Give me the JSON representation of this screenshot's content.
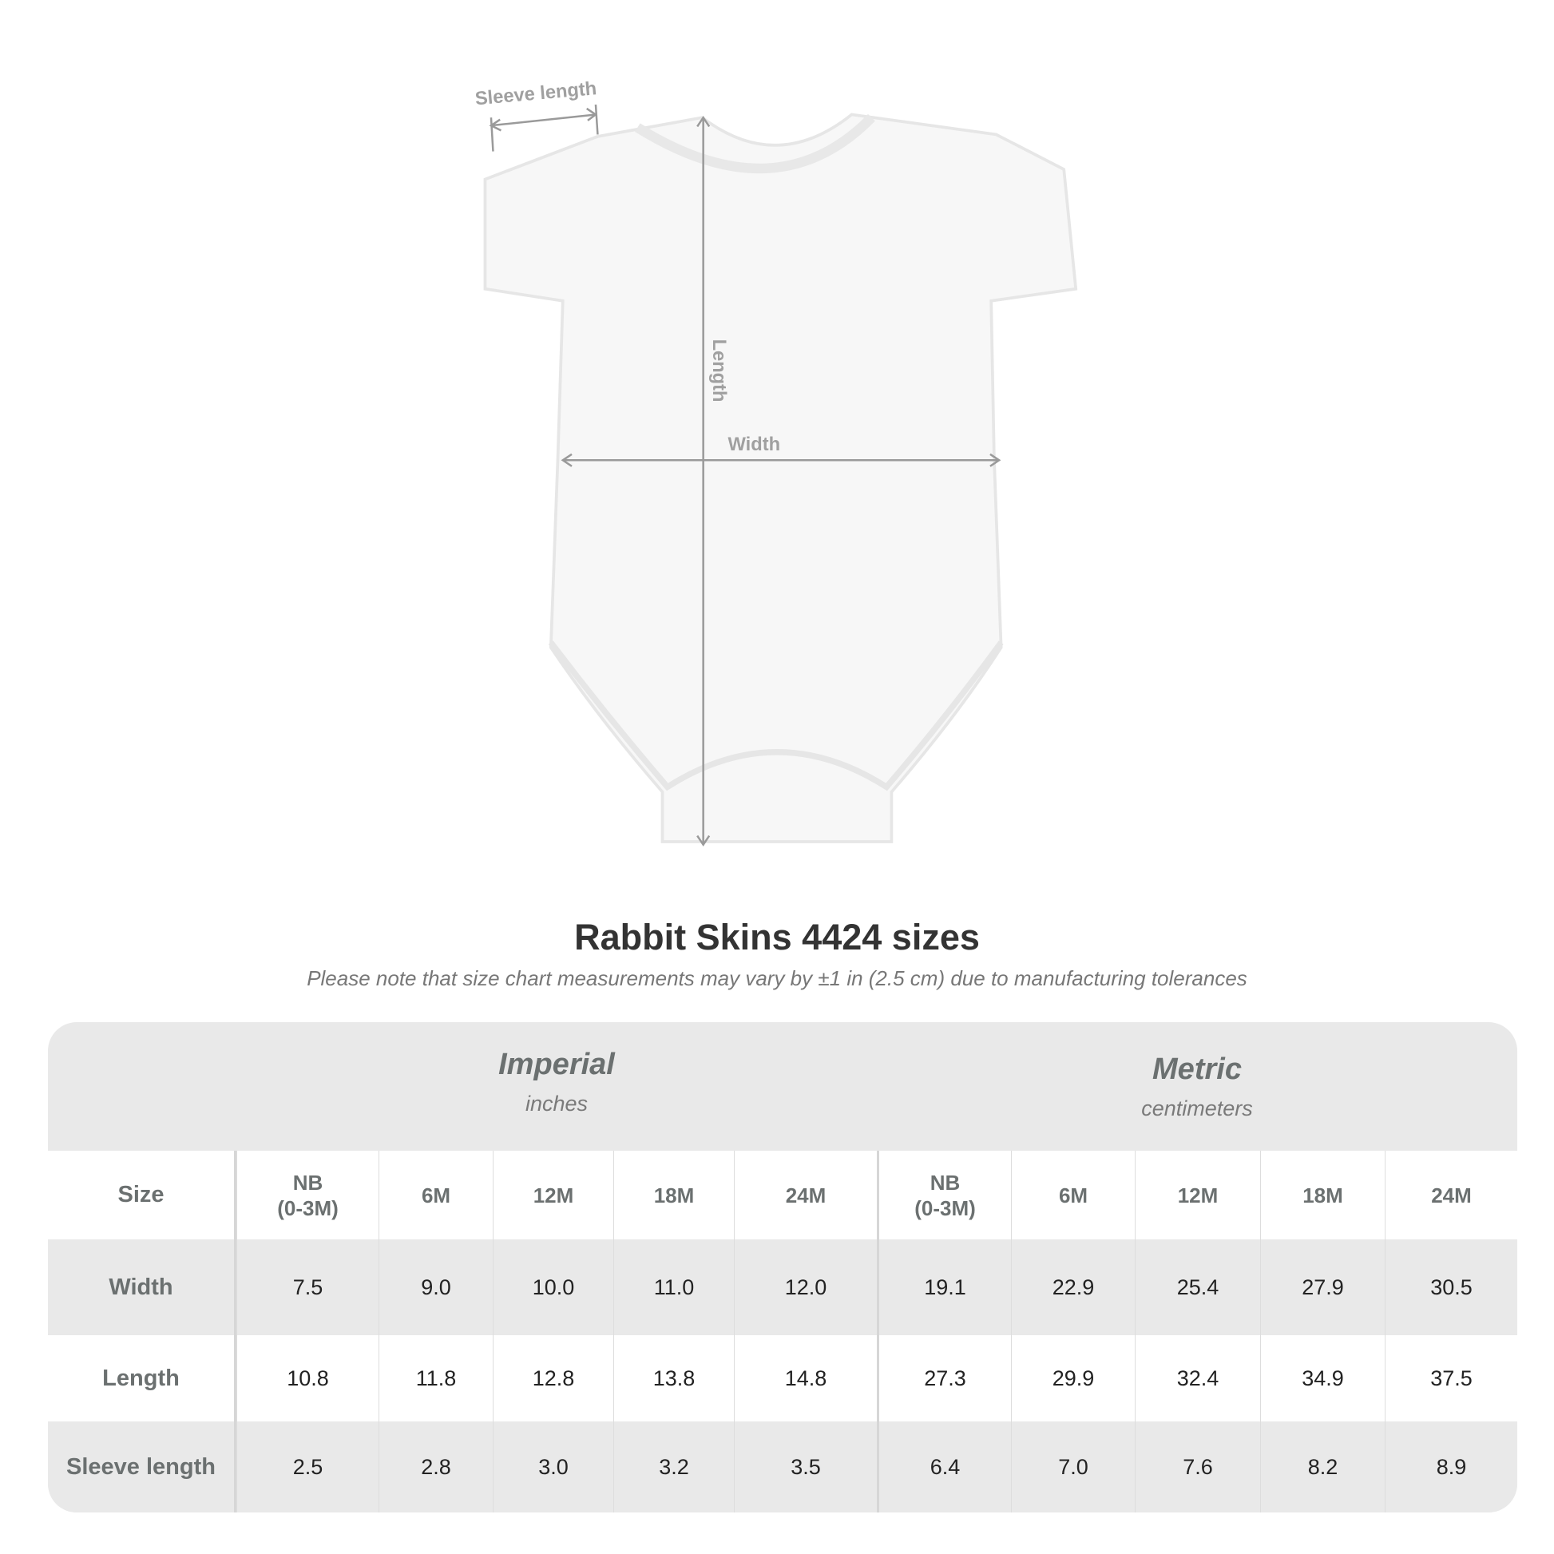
{
  "diagram": {
    "sleeve_label": "Sleeve length",
    "length_label": "Length",
    "width_label": "Width"
  },
  "title": "Rabbit Skins 4424 sizes",
  "subtitle": "Please note that size chart measurements may vary by ±1 in (2.5 cm) due to manufacturing tolerances",
  "table": {
    "imperial": {
      "name": "Imperial",
      "unit": "inches"
    },
    "metric": {
      "name": "Metric",
      "unit": "centimeters"
    },
    "size_label": "Size",
    "sizes": [
      "NB\n(0-3M)",
      "6M",
      "12M",
      "18M",
      "24M"
    ],
    "rows": [
      {
        "label": "Width",
        "imperial": [
          "7.5",
          "9.0",
          "10.0",
          "11.0",
          "12.0"
        ],
        "metric": [
          "19.1",
          "22.9",
          "25.4",
          "27.9",
          "30.5"
        ]
      },
      {
        "label": "Length",
        "imperial": [
          "10.8",
          "11.8",
          "12.8",
          "13.8",
          "14.8"
        ],
        "metric": [
          "27.3",
          "29.9",
          "32.4",
          "34.9",
          "37.5"
        ]
      },
      {
        "label": "Sleeve length",
        "imperial": [
          "2.5",
          "2.8",
          "3.0",
          "3.2",
          "3.5"
        ],
        "metric": [
          "6.4",
          "7.0",
          "7.6",
          "8.2",
          "8.9"
        ]
      }
    ]
  }
}
